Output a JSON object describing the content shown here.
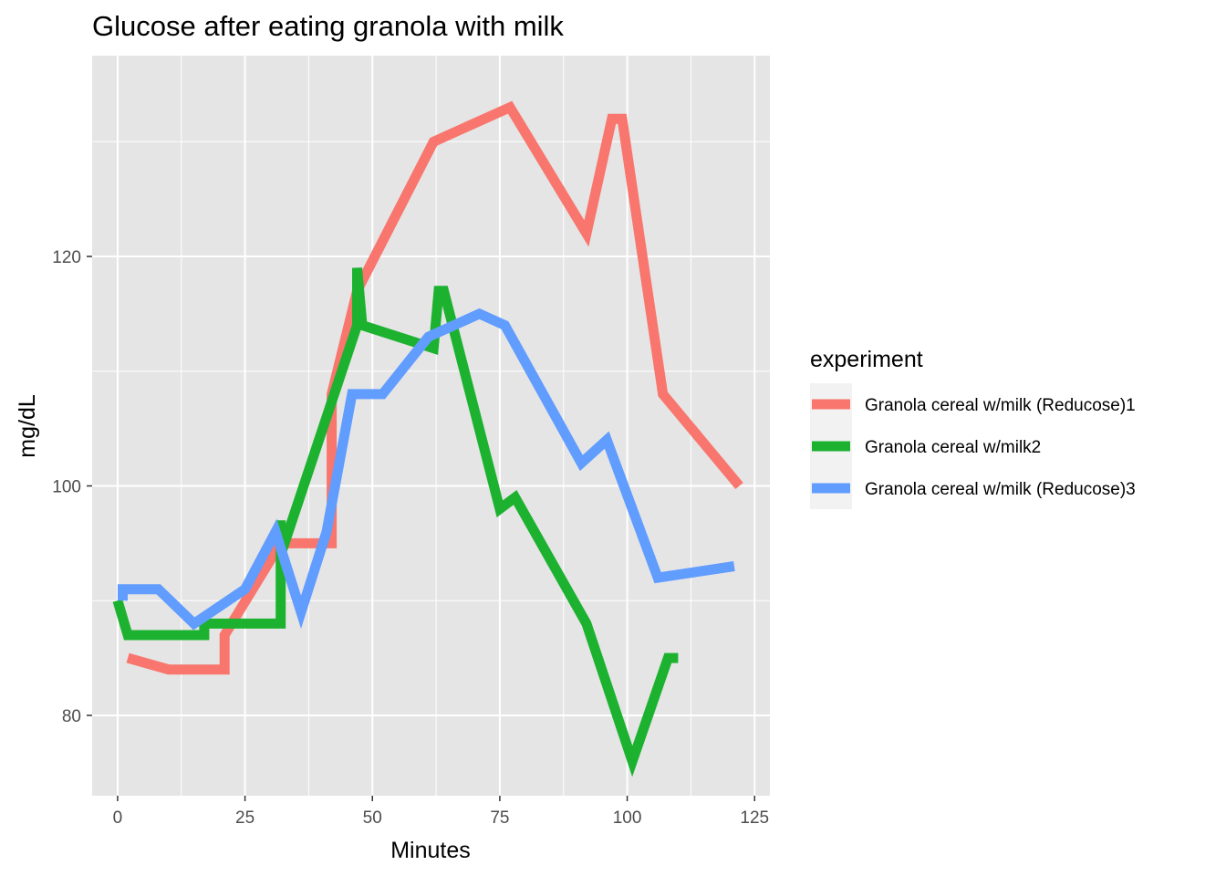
{
  "chart_data": {
    "type": "line",
    "title": "Glucose after eating granola with milk",
    "xlabel": "Minutes",
    "ylabel": "mg/dL",
    "xlim": [
      -5,
      128
    ],
    "ylim": [
      73,
      137.5
    ],
    "x_ticks": [
      0,
      25,
      50,
      75,
      100,
      125
    ],
    "y_ticks": [
      80,
      100,
      120
    ],
    "x_tick_labels": [
      "0",
      "25",
      "50",
      "75",
      "100",
      "125"
    ],
    "y_tick_labels": [
      "80",
      "100",
      "120"
    ],
    "legend_title": "experiment",
    "legend_position": "right",
    "panel_background": "#e5e5e5",
    "grid_color": "#ffffff",
    "series": [
      {
        "name": "Granola cereal w/milk (Reducose)1",
        "color": "#F8766D",
        "points": [
          [
            2,
            85
          ],
          [
            10,
            84
          ],
          [
            21,
            84
          ],
          [
            21,
            87
          ],
          [
            32,
            95
          ],
          [
            42,
            95
          ],
          [
            42,
            108
          ],
          [
            47,
            117
          ],
          [
            62,
            130
          ],
          [
            77,
            133
          ],
          [
            92,
            122
          ],
          [
            97,
            132
          ],
          [
            99,
            132
          ],
          [
            107,
            108
          ],
          [
            122,
            100
          ]
        ]
      },
      {
        "name": "Granola cereal w/milk2",
        "color": "#1CB22F",
        "points": [
          [
            0,
            90
          ],
          [
            2,
            87
          ],
          [
            17,
            87
          ],
          [
            17,
            88
          ],
          [
            32,
            88
          ],
          [
            32,
            97
          ],
          [
            32,
            94
          ],
          [
            47,
            114
          ],
          [
            47,
            119
          ],
          [
            48,
            114
          ],
          [
            62,
            112
          ],
          [
            63,
            117
          ],
          [
            64,
            117
          ],
          [
            75,
            98
          ],
          [
            78,
            99
          ],
          [
            92,
            88
          ],
          [
            101,
            76
          ],
          [
            108,
            85
          ],
          [
            110,
            85
          ]
        ]
      },
      {
        "name": "Granola cereal w/milk (Reducose)3",
        "color": "#619CFF",
        "points": [
          [
            1,
            90
          ],
          [
            1,
            91
          ],
          [
            8,
            91
          ],
          [
            15,
            88
          ],
          [
            25,
            91
          ],
          [
            31,
            96
          ],
          [
            36,
            89
          ],
          [
            41,
            96
          ],
          [
            46,
            108
          ],
          [
            52,
            108
          ],
          [
            61,
            113
          ],
          [
            71,
            115
          ],
          [
            76,
            114
          ],
          [
            91,
            102
          ],
          [
            96,
            104
          ],
          [
            106,
            92
          ],
          [
            121,
            93
          ]
        ]
      }
    ]
  }
}
